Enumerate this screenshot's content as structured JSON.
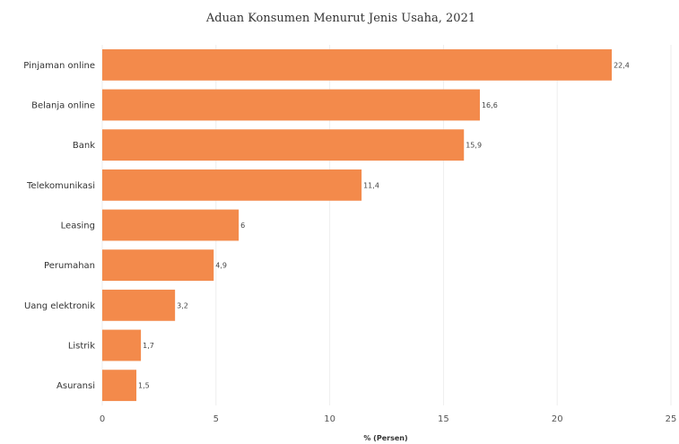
{
  "chart_data": {
    "type": "bar",
    "orientation": "horizontal",
    "title": "Aduan Konsumen Menurut Jenis Usaha, 2021",
    "xlabel": "% (Persen)",
    "ylabel": "",
    "categories": [
      "Pinjaman online",
      "Belanja online",
      "Bank",
      "Telekomunikasi",
      "Leasing",
      "Perumahan",
      "Uang elektronik",
      "Listrik",
      "Asuransi"
    ],
    "values": [
      22.4,
      16.6,
      15.9,
      11.4,
      6,
      4.9,
      3.2,
      1.7,
      1.5
    ],
    "value_labels": [
      "22,4",
      "16,6",
      "15,9",
      "11,4",
      "6",
      "4,9",
      "3,2",
      "1,7",
      "1,5"
    ],
    "xlim": [
      0,
      25
    ],
    "xticks": [
      0,
      5,
      10,
      15,
      20,
      25
    ],
    "grid": true,
    "bar_color": "#f38a4b"
  }
}
